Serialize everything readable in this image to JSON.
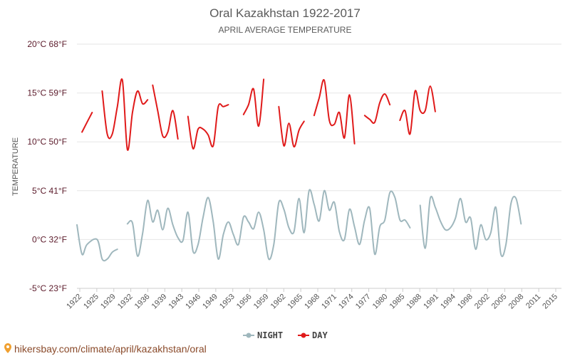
{
  "chart_data": {
    "type": "line",
    "title": "Oral Kazakhstan 1922-2017",
    "subtitle": "APRIL AVERAGE TEMPERATURE",
    "ylabel": "TEMPERATURE",
    "xlabel": "",
    "ylim": [
      -5,
      20
    ],
    "yticks": [
      {
        "value": -5,
        "label": "-5°C 23°F"
      },
      {
        "value": 0,
        "label": "0°C 32°F"
      },
      {
        "value": 5,
        "label": "5°C 41°F"
      },
      {
        "value": 10,
        "label": "10°C 50°F"
      },
      {
        "value": 15,
        "label": "15°C 59°F"
      },
      {
        "value": 20,
        "label": "20°C 68°F"
      }
    ],
    "xlim": [
      1922,
      2018
    ],
    "xtick_labels": [
      "1922",
      "1925",
      "1929",
      "1932",
      "1936",
      "1939",
      "1943",
      "1946",
      "1949",
      "1953",
      "1956",
      "1959",
      "1962",
      "1965",
      "1968",
      "1971",
      "1974",
      "1977",
      "1980",
      "1985",
      "1988",
      "1991",
      "1994",
      "1998",
      "2002",
      "2005",
      "2008",
      "2011",
      "2015"
    ],
    "legend": [
      {
        "name": "NIGHT",
        "color": "#9fb7bd"
      },
      {
        "name": "DAY",
        "color": "#e01a1a"
      }
    ],
    "series": [
      {
        "name": "NIGHT",
        "color": "#9fb7bd",
        "values": [
          [
            1922,
            1.5
          ],
          [
            1923,
            -1.5
          ],
          [
            1924,
            -0.5
          ],
          [
            1926,
            0
          ],
          [
            1927,
            -2
          ],
          [
            1928,
            -2
          ],
          [
            1929,
            -1.3
          ],
          [
            1930,
            -1
          ],
          null,
          [
            1932,
            1.6
          ],
          [
            1933,
            1.7
          ],
          [
            1934,
            -1.7
          ],
          [
            1935,
            0.6
          ],
          [
            1936,
            4
          ],
          [
            1937,
            1.8
          ],
          [
            1938,
            3
          ],
          [
            1939,
            1
          ],
          [
            1940,
            3.2
          ],
          [
            1941,
            1.5
          ],
          [
            1942,
            0.2
          ],
          [
            1943,
            -0.1
          ],
          [
            1944,
            2.8
          ],
          [
            1945,
            -1.2
          ],
          [
            1946,
            -0.5
          ],
          [
            1947,
            2.3
          ],
          [
            1948,
            4.3
          ],
          [
            1949,
            1.8
          ],
          [
            1950,
            -2
          ],
          [
            1951,
            0.5
          ],
          [
            1952,
            1.8
          ],
          [
            1953,
            0.5
          ],
          [
            1954,
            -0.5
          ],
          [
            1955,
            2.3
          ],
          [
            1956,
            1.8
          ],
          [
            1957,
            1.1
          ],
          [
            1958,
            2.8
          ],
          [
            1959,
            1
          ],
          [
            1960,
            -2
          ],
          [
            1961,
            -0.5
          ],
          [
            1962,
            3.8
          ],
          [
            1963,
            3.1
          ],
          [
            1964,
            1.2
          ],
          [
            1965,
            0.8
          ],
          [
            1966,
            4.2
          ],
          [
            1967,
            0.7
          ],
          [
            1968,
            5
          ],
          [
            1969,
            3.6
          ],
          [
            1970,
            1.9
          ],
          [
            1971,
            5
          ],
          [
            1972,
            3
          ],
          [
            1973,
            3.8
          ],
          [
            1974,
            0.8
          ],
          [
            1975,
            0
          ],
          [
            1976,
            3.1
          ],
          [
            1977,
            1.3
          ],
          [
            1978,
            -0.5
          ],
          [
            1979,
            2
          ],
          [
            1980,
            3.2
          ],
          [
            1981,
            -1.5
          ],
          [
            1982,
            1.3
          ],
          [
            1983,
            2
          ],
          [
            1984,
            4.8
          ],
          [
            1985,
            4.3
          ],
          [
            1986,
            2
          ],
          [
            1987,
            2
          ],
          [
            1988,
            1.2
          ],
          null,
          [
            1990,
            3.5
          ],
          [
            1991,
            -0.9
          ],
          [
            1992,
            4.2
          ],
          [
            1993,
            3.3
          ],
          [
            1994,
            1.9
          ],
          [
            1995,
            1
          ],
          [
            1996,
            1.2
          ],
          [
            1997,
            2.2
          ],
          [
            1998,
            4.2
          ],
          [
            1999,
            1.8
          ],
          [
            2000,
            2.2
          ],
          [
            2001,
            -1
          ],
          [
            2002,
            1.5
          ],
          [
            2003,
            0
          ],
          [
            2004,
            0.7
          ],
          [
            2005,
            3.3
          ],
          [
            2006,
            -1.5
          ],
          [
            2007,
            -0.5
          ],
          [
            2008,
            3.7
          ],
          [
            2009,
            4.2
          ],
          [
            2010,
            1.6
          ]
        ]
      },
      {
        "name": "DAY",
        "color": "#e01a1a",
        "values": [
          [
            1923,
            11
          ],
          [
            1925,
            13
          ],
          null,
          [
            1927,
            15.2
          ],
          [
            1928,
            10.8
          ],
          [
            1929,
            10.8
          ],
          [
            1930,
            13.6
          ],
          [
            1931,
            16.3
          ],
          [
            1932,
            9.2
          ],
          [
            1933,
            13
          ],
          [
            1934,
            15.2
          ],
          [
            1935,
            13.9
          ],
          [
            1936,
            14.3
          ],
          null,
          [
            1937,
            15.8
          ],
          [
            1938,
            13.2
          ],
          [
            1939,
            10.6
          ],
          [
            1940,
            11
          ],
          [
            1941,
            13.2
          ],
          [
            1942,
            10.3
          ],
          null,
          [
            1944,
            12.6
          ],
          [
            1945,
            9.3
          ],
          [
            1946,
            11.3
          ],
          [
            1947,
            11.3
          ],
          [
            1948,
            10.7
          ],
          [
            1949,
            9.6
          ],
          [
            1950,
            13.6
          ],
          [
            1951,
            13.6
          ],
          [
            1952,
            13.8
          ],
          null,
          [
            1955,
            12.8
          ],
          [
            1956,
            13.8
          ],
          [
            1957,
            15.4
          ],
          [
            1958,
            11.6
          ],
          [
            1959,
            16.4
          ],
          null,
          [
            1962,
            13.6
          ],
          [
            1963,
            9.6
          ],
          [
            1964,
            11.9
          ],
          [
            1965,
            9.5
          ],
          [
            1966,
            11.2
          ],
          [
            1967,
            12.1
          ],
          null,
          [
            1969,
            12.7
          ],
          [
            1970,
            14.5
          ],
          [
            1971,
            16.3
          ],
          [
            1972,
            12.2
          ],
          [
            1973,
            11.8
          ],
          [
            1974,
            13
          ],
          [
            1975,
            10.4
          ],
          [
            1976,
            14.8
          ],
          [
            1977,
            9.8
          ],
          null,
          [
            1979,
            12.7
          ],
          [
            1980,
            12.3
          ],
          [
            1981,
            12
          ],
          [
            1982,
            14
          ],
          [
            1983,
            14.9
          ],
          [
            1984,
            13.8
          ],
          null,
          [
            1986,
            12.2
          ],
          [
            1987,
            13.2
          ],
          [
            1988,
            10.8
          ],
          [
            1989,
            15.2
          ],
          [
            1990,
            13.2
          ],
          [
            1991,
            13.2
          ],
          [
            1992,
            15.7
          ],
          [
            1993,
            13.1
          ]
        ]
      }
    ]
  },
  "footer": {
    "url": "hikersbay.com/climate/april/kazakhstan/oral"
  }
}
